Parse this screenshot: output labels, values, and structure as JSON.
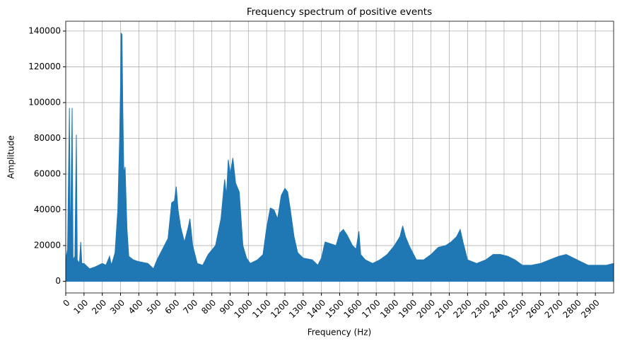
{
  "chart_data": {
    "type": "area",
    "title": "Frequency spectrum of positive events",
    "xlabel": "Frequency (Hz)",
    "ylabel": "Amplitude",
    "color": "#1f77b4",
    "grid": true,
    "xlim": [
      0,
      3000
    ],
    "ylim": [
      -6500,
      145500
    ],
    "xticks": [
      0,
      100,
      200,
      300,
      400,
      500,
      600,
      700,
      800,
      900,
      1000,
      1100,
      1200,
      1300,
      1400,
      1500,
      1600,
      1700,
      1800,
      1900,
      2000,
      2100,
      2200,
      2300,
      2400,
      2500,
      2600,
      2700,
      2800,
      2900
    ],
    "yticks": [
      0,
      20000,
      40000,
      60000,
      80000,
      100000,
      120000,
      140000
    ],
    "x": [
      0,
      10,
      20,
      25,
      35,
      40,
      50,
      58,
      63,
      75,
      82,
      88,
      100,
      130,
      160,
      200,
      220,
      240,
      250,
      270,
      285,
      295,
      300,
      303,
      308,
      312,
      318,
      325,
      335,
      345,
      370,
      400,
      450,
      480,
      500,
      530,
      560,
      580,
      595,
      605,
      615,
      630,
      650,
      670,
      680,
      695,
      720,
      750,
      780,
      820,
      850,
      870,
      880,
      890,
      900,
      915,
      930,
      950,
      970,
      990,
      1010,
      1050,
      1080,
      1100,
      1120,
      1140,
      1160,
      1180,
      1200,
      1215,
      1230,
      1250,
      1270,
      1300,
      1350,
      1380,
      1400,
      1420,
      1450,
      1480,
      1500,
      1520,
      1540,
      1570,
      1590,
      1605,
      1615,
      1640,
      1680,
      1720,
      1760,
      1800,
      1830,
      1845,
      1860,
      1880,
      1920,
      1960,
      2000,
      2040,
      2080,
      2110,
      2140,
      2160,
      2175,
      2200,
      2250,
      2300,
      2340,
      2380,
      2420,
      2460,
      2500,
      2550,
      2600,
      2650,
      2700,
      2740,
      2780,
      2820,
      2860,
      2900,
      2960,
      3000
    ],
    "values": [
      12000,
      18000,
      97000,
      15000,
      97000,
      12000,
      14000,
      82000,
      12000,
      10000,
      22000,
      10000,
      10000,
      7000,
      8000,
      10000,
      9000,
      14000,
      9000,
      16000,
      40000,
      80000,
      110000,
      139000,
      138000,
      100000,
      60000,
      64000,
      30000,
      14000,
      12000,
      11000,
      10000,
      7000,
      12000,
      18000,
      24000,
      44000,
      45000,
      53000,
      40000,
      30000,
      22000,
      30000,
      35000,
      20000,
      10000,
      9000,
      15000,
      20000,
      35000,
      57000,
      48000,
      68000,
      60000,
      69000,
      55000,
      50000,
      20000,
      13000,
      10000,
      12000,
      15000,
      30000,
      41000,
      40000,
      35000,
      48000,
      52000,
      50000,
      40000,
      25000,
      16000,
      13000,
      12000,
      9000,
      13000,
      22000,
      21000,
      20000,
      27000,
      29000,
      26000,
      20000,
      18000,
      28000,
      15000,
      12000,
      10000,
      12000,
      15000,
      20000,
      25000,
      31000,
      25000,
      20000,
      12000,
      12000,
      15000,
      19000,
      20000,
      22000,
      25000,
      29000,
      22000,
      12000,
      10000,
      12000,
      15000,
      15000,
      14000,
      12000,
      9000,
      9000,
      10000,
      12000,
      14000,
      15000,
      13000,
      11000,
      9000,
      9000,
      9000,
      10000
    ]
  }
}
